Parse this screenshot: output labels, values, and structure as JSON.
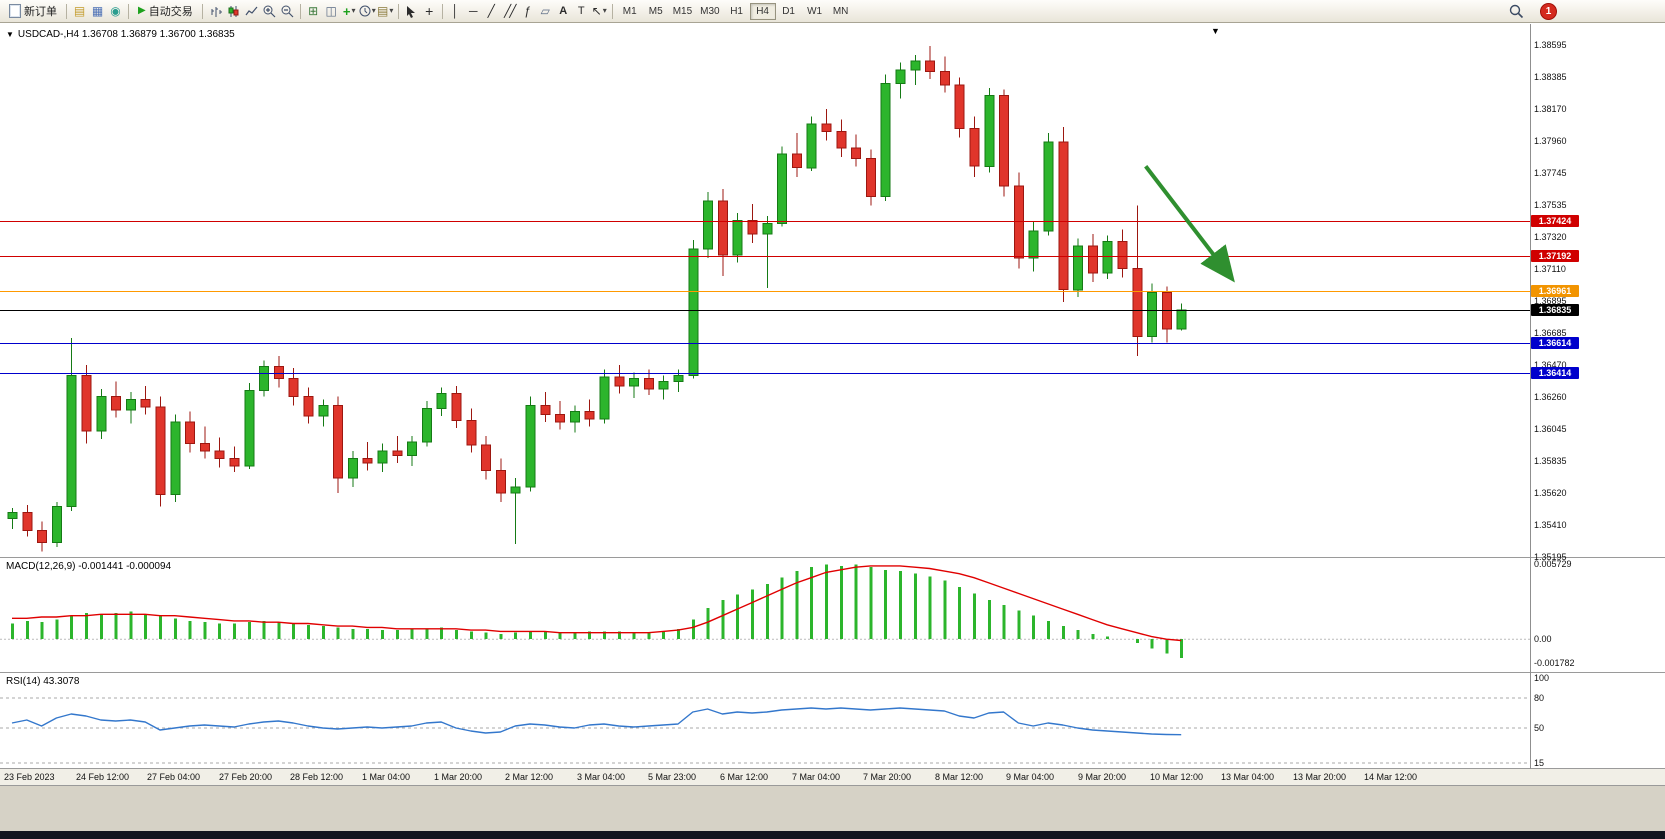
{
  "toolbar": {
    "new_order_label": "新订单",
    "auto_trading_label": "自动交易",
    "timeframes": [
      "M1",
      "M5",
      "M15",
      "M30",
      "H1",
      "H4",
      "D1",
      "W1",
      "MN"
    ],
    "active_timeframe": "H4",
    "notification_count": "1",
    "icon_names": [
      "new-order-icon",
      "market-watch-icon",
      "data-window-icon",
      "navigator-icon",
      "auto-trading-play-icon",
      "bar-chart-type-icon",
      "candlestick-type-icon",
      "line-chart-type-icon",
      "zoom-in-icon",
      "zoom-out-icon",
      "tile-windows-icon",
      "cascade-windows-icon",
      "indicators-icon",
      "periods-icon",
      "templates-icon",
      "cursor-icon",
      "crosshair-icon",
      "vertical-line-icon",
      "horizontal-line-icon",
      "trendline-icon",
      "channel-icon",
      "fibonacci-icon",
      "shapes-icon",
      "text-icon",
      "label-icon",
      "arrows-icon",
      "search-icon"
    ]
  },
  "chart_header": {
    "title": "USDCAD-,H4  1.36708 1.36879 1.36700 1.36835",
    "symbol": "USDCAD-",
    "period": "H4",
    "open": "1.36708",
    "high": "1.36879",
    "low": "1.36700",
    "close": "1.36835"
  },
  "chart_data": [
    {
      "type": "candlestick",
      "symbol": "USDCAD-",
      "timeframe": "H4",
      "ylim": [
        1.35188,
        1.38715
      ],
      "y_tick_labels": [
        "1.38595",
        "1.38385",
        "1.38170",
        "1.37960",
        "1.37745",
        "1.37535",
        "1.37320",
        "1.37110",
        "1.36895",
        "1.36685",
        "1.36470",
        "1.36260",
        "1.36045",
        "1.35835",
        "1.35620",
        "1.35410",
        "1.35195"
      ],
      "x_tick_labels": [
        "23 Feb 2023",
        "24 Feb 12:00",
        "27 Feb 04:00",
        "27 Feb 20:00",
        "28 Feb 12:00",
        "1 Mar 04:00",
        "1 Mar 20:00",
        "2 Mar 12:00",
        "3 Mar 04:00",
        "5 Mar 23:00",
        "6 Mar 12:00",
        "7 Mar 04:00",
        "7 Mar 20:00",
        "8 Mar 12:00",
        "9 Mar 04:00",
        "9 Mar 20:00",
        "10 Mar 12:00",
        "13 Mar 04:00",
        "13 Mar 20:00",
        "14 Mar 12:00"
      ],
      "colors": {
        "up": "#2cb52c",
        "down": "#e0352b",
        "up_stroke": "#157a15",
        "down_stroke": "#9c1710",
        "current_line": "#000000"
      },
      "candles": [
        [
          1.3545,
          1.3552,
          1.3538,
          1.3549
        ],
        [
          1.3549,
          1.3554,
          1.3533,
          1.3537
        ],
        [
          1.3537,
          1.3543,
          1.3523,
          1.3529
        ],
        [
          1.3529,
          1.3556,
          1.3526,
          1.3553
        ],
        [
          1.3553,
          1.3665,
          1.355,
          1.364
        ],
        [
          1.364,
          1.3647,
          1.3595,
          1.3603
        ],
        [
          1.3603,
          1.3631,
          1.3598,
          1.3626
        ],
        [
          1.3626,
          1.3636,
          1.3612,
          1.3617
        ],
        [
          1.3617,
          1.3629,
          1.3608,
          1.3624
        ],
        [
          1.3624,
          1.3633,
          1.3614,
          1.3619
        ],
        [
          1.3619,
          1.3626,
          1.3553,
          1.3561
        ],
        [
          1.3561,
          1.3614,
          1.3556,
          1.3609
        ],
        [
          1.3609,
          1.3616,
          1.3589,
          1.3595
        ],
        [
          1.3595,
          1.3606,
          1.3585,
          1.359
        ],
        [
          1.359,
          1.3599,
          1.3579,
          1.3585
        ],
        [
          1.3585,
          1.3593,
          1.3576,
          1.358
        ],
        [
          1.358,
          1.3635,
          1.3578,
          1.363
        ],
        [
          1.363,
          1.365,
          1.3626,
          1.3646
        ],
        [
          1.3646,
          1.3653,
          1.3632,
          1.3638
        ],
        [
          1.3638,
          1.3645,
          1.362,
          1.3626
        ],
        [
          1.3626,
          1.3632,
          1.3608,
          1.3613
        ],
        [
          1.3613,
          1.3624,
          1.3606,
          1.362
        ],
        [
          1.362,
          1.3626,
          1.3562,
          1.3572
        ],
        [
          1.3572,
          1.359,
          1.3566,
          1.3585
        ],
        [
          1.3585,
          1.3596,
          1.3577,
          1.3582
        ],
        [
          1.3582,
          1.3595,
          1.3576,
          1.359
        ],
        [
          1.359,
          1.36,
          1.3582,
          1.3587
        ],
        [
          1.3587,
          1.36,
          1.358,
          1.3596
        ],
        [
          1.3596,
          1.3623,
          1.3593,
          1.3618
        ],
        [
          1.3618,
          1.3632,
          1.3613,
          1.3628
        ],
        [
          1.3628,
          1.3633,
          1.3605,
          1.361
        ],
        [
          1.361,
          1.3618,
          1.3589,
          1.3594
        ],
        [
          1.3594,
          1.36,
          1.3571,
          1.3577
        ],
        [
          1.3577,
          1.3585,
          1.3556,
          1.3562
        ],
        [
          1.3562,
          1.3572,
          1.3528,
          1.3566
        ],
        [
          1.3566,
          1.3626,
          1.3563,
          1.362
        ],
        [
          1.362,
          1.3629,
          1.3609,
          1.3614
        ],
        [
          1.3614,
          1.3623,
          1.3604,
          1.3609
        ],
        [
          1.3609,
          1.362,
          1.3602,
          1.3616
        ],
        [
          1.3616,
          1.3624,
          1.3606,
          1.3611
        ],
        [
          1.3611,
          1.3644,
          1.3608,
          1.3639
        ],
        [
          1.3639,
          1.3647,
          1.3628,
          1.3633
        ],
        [
          1.3633,
          1.3642,
          1.3625,
          1.3638
        ],
        [
          1.3638,
          1.3644,
          1.3627,
          1.3631
        ],
        [
          1.3631,
          1.364,
          1.3624,
          1.3636
        ],
        [
          1.3636,
          1.3644,
          1.3629,
          1.364
        ],
        [
          1.364,
          1.373,
          1.3638,
          1.3724
        ],
        [
          1.3724,
          1.3762,
          1.3718,
          1.3756
        ],
        [
          1.3756,
          1.3764,
          1.3706,
          1.372
        ],
        [
          1.372,
          1.3748,
          1.3715,
          1.3743
        ],
        [
          1.3743,
          1.3754,
          1.3728,
          1.3734
        ],
        [
          1.3734,
          1.3746,
          1.3698,
          1.3741
        ],
        [
          1.3741,
          1.3792,
          1.3739,
          1.3787
        ],
        [
          1.3787,
          1.3801,
          1.3772,
          1.3778
        ],
        [
          1.3778,
          1.3812,
          1.3776,
          1.3807
        ],
        [
          1.3807,
          1.3817,
          1.3796,
          1.3802
        ],
        [
          1.3802,
          1.381,
          1.3785,
          1.3791
        ],
        [
          1.3791,
          1.38,
          1.3779,
          1.3784
        ],
        [
          1.3784,
          1.379,
          1.3753,
          1.3759
        ],
        [
          1.3759,
          1.384,
          1.3756,
          1.3834
        ],
        [
          1.3834,
          1.3848,
          1.3824,
          1.3843
        ],
        [
          1.3843,
          1.3853,
          1.3833,
          1.3849
        ],
        [
          1.3849,
          1.3859,
          1.3837,
          1.3842
        ],
        [
          1.3842,
          1.3852,
          1.3828,
          1.3833
        ],
        [
          1.3833,
          1.3838,
          1.3798,
          1.3804
        ],
        [
          1.3804,
          1.3812,
          1.3772,
          1.3779
        ],
        [
          1.3779,
          1.3831,
          1.3775,
          1.3826
        ],
        [
          1.3826,
          1.383,
          1.3759,
          1.3766
        ],
        [
          1.3766,
          1.3775,
          1.3711,
          1.3718
        ],
        [
          1.3718,
          1.3742,
          1.3709,
          1.3736
        ],
        [
          1.3736,
          1.3801,
          1.3733,
          1.3795
        ],
        [
          1.3795,
          1.3805,
          1.3689,
          1.3697
        ],
        [
          1.3697,
          1.3731,
          1.3692,
          1.3726
        ],
        [
          1.3726,
          1.3734,
          1.3702,
          1.3708
        ],
        [
          1.3708,
          1.3733,
          1.3704,
          1.3729
        ],
        [
          1.3729,
          1.3737,
          1.3705,
          1.3711
        ],
        [
          1.3711,
          1.3753,
          1.3653,
          1.3666
        ],
        [
          1.3666,
          1.3701,
          1.3662,
          1.3695
        ],
        [
          1.3695,
          1.3699,
          1.3662,
          1.36708
        ],
        [
          1.36708,
          1.36879,
          1.367,
          1.36835
        ]
      ],
      "hlines": [
        {
          "price": 1.37424,
          "label": "1.37424",
          "color": "#d00000",
          "badge": "#d00000"
        },
        {
          "price": 1.37192,
          "label": "1.37192",
          "color": "#d00000",
          "badge": "#d00000"
        },
        {
          "price": 1.36961,
          "label": "1.36961",
          "color": "#ff9900",
          "badge": "#f29400"
        },
        {
          "price": 1.36835,
          "label": "1.36835",
          "color": "#000000",
          "badge": "#000000",
          "current": true
        },
        {
          "price": 1.36614,
          "label": "1.36614",
          "color": "#0000cc",
          "badge": "#0000cc"
        },
        {
          "price": 1.36414,
          "label": "1.36414",
          "color": "#0000cc",
          "badge": "#0000cc"
        }
      ],
      "arrow": {
        "x1_index": 76.6,
        "price1": 1.3779,
        "x2_index": 82.3,
        "price2": 1.3706,
        "color": "#2f8f2f"
      }
    },
    {
      "type": "bar",
      "name": "MACD(12,26,9)",
      "label": "MACD(12,26,9) -0.001441 -0.000094",
      "macd_value": -0.001441,
      "signal_value": -9.4e-05,
      "ylim": [
        -0.0025,
        0.0062
      ],
      "y_ticks": [
        {
          "value": 0.005729,
          "label": "0.005729"
        },
        {
          "value": 0.0,
          "label": "0.00"
        },
        {
          "value": -0.001782,
          "label": "-0.001782"
        }
      ],
      "colors": {
        "histogram": "#2cb52c",
        "signal": "#e00000"
      },
      "values": [
        0.0012,
        0.0014,
        0.0013,
        0.0015,
        0.0018,
        0.002,
        0.0019,
        0.002,
        0.0021,
        0.0019,
        0.0018,
        0.0016,
        0.0014,
        0.0013,
        0.0012,
        0.0012,
        0.0013,
        0.0014,
        0.0013,
        0.0012,
        0.0011,
        0.001,
        0.0009,
        0.0008,
        0.0008,
        0.0007,
        0.0007,
        0.0008,
        0.0008,
        0.0009,
        0.0007,
        0.0006,
        0.0005,
        0.0004,
        0.0005,
        0.0006,
        0.0006,
        0.0005,
        0.0005,
        0.0006,
        0.0006,
        0.0006,
        0.0005,
        0.0005,
        0.0006,
        0.0008,
        0.0015,
        0.0024,
        0.003,
        0.0034,
        0.0038,
        0.0042,
        0.0047,
        0.0052,
        0.0055,
        0.0057,
        0.0056,
        0.0057,
        0.0055,
        0.0053,
        0.0052,
        0.005,
        0.0048,
        0.0045,
        0.004,
        0.0035,
        0.003,
        0.0026,
        0.0022,
        0.0018,
        0.0014,
        0.001,
        0.0007,
        0.0004,
        0.0002,
        0.0,
        -0.0003,
        -0.0007,
        -0.0011,
        -0.001441
      ],
      "signal": [
        0.0016,
        0.0016,
        0.0017,
        0.0017,
        0.0018,
        0.0018,
        0.0019,
        0.0019,
        0.0019,
        0.0019,
        0.0018,
        0.0018,
        0.0017,
        0.0016,
        0.0015,
        0.0014,
        0.0014,
        0.0013,
        0.0013,
        0.0012,
        0.0012,
        0.0011,
        0.001,
        0.001,
        0.0009,
        0.0009,
        0.0008,
        0.0008,
        0.0008,
        0.0008,
        0.0008,
        0.0007,
        0.0007,
        0.0006,
        0.0006,
        0.0006,
        0.0006,
        0.0005,
        0.0005,
        0.0005,
        0.0005,
        0.0005,
        0.0005,
        0.0005,
        0.0006,
        0.0007,
        0.0009,
        0.0013,
        0.0018,
        0.0023,
        0.0028,
        0.0033,
        0.0038,
        0.0043,
        0.0047,
        0.0051,
        0.0053,
        0.0055,
        0.0056,
        0.0056,
        0.0056,
        0.0055,
        0.0054,
        0.0052,
        0.005,
        0.0047,
        0.0043,
        0.0039,
        0.0035,
        0.0031,
        0.0027,
        0.0023,
        0.0019,
        0.0015,
        0.0011,
        0.0008,
        0.0005,
        0.0002,
        0.0,
        -9.4e-05
      ]
    },
    {
      "type": "line",
      "name": "RSI(14)",
      "label": "RSI(14) 43.3078",
      "rsi_value": 43.3078,
      "ylim": [
        10,
        105
      ],
      "y_ticks": [
        {
          "value": 100,
          "label": "100"
        },
        {
          "value": 80,
          "label": "80"
        },
        {
          "value": 50,
          "label": "50"
        },
        {
          "value": 15,
          "label": "15"
        }
      ],
      "levels": [
        80,
        50,
        15
      ],
      "color": "#3377cc",
      "values": [
        55,
        58,
        52,
        60,
        64,
        62,
        58,
        57,
        58,
        56,
        48,
        50,
        52,
        53,
        52,
        51,
        54,
        56,
        57,
        55,
        52,
        50,
        49,
        50,
        51,
        50,
        51,
        52,
        55,
        56,
        50,
        47,
        45,
        46,
        52,
        54,
        53,
        51,
        50,
        53,
        54,
        52,
        51,
        52,
        53,
        54,
        66,
        69,
        64,
        66,
        65,
        66,
        68,
        69,
        70,
        69,
        70,
        69,
        68,
        69,
        70,
        69,
        68,
        67,
        62,
        60,
        65,
        66,
        55,
        52,
        55,
        53,
        50,
        48,
        47,
        46,
        45,
        44,
        43.5,
        43.3078
      ]
    }
  ]
}
